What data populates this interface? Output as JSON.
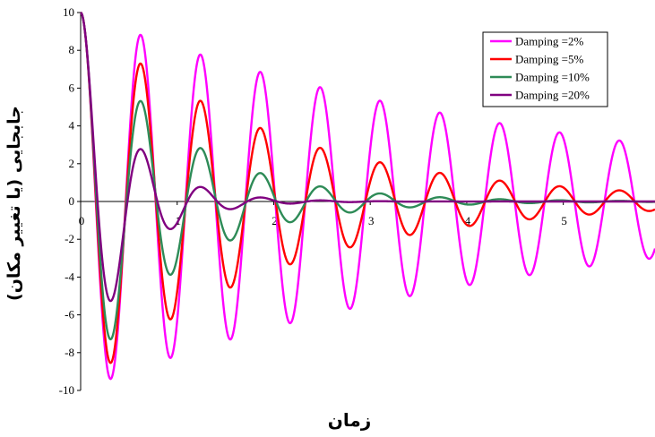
{
  "chart_data": {
    "type": "line",
    "title": "",
    "xlabel": "زمان",
    "ylabel": "جابجایی (یا تغییر مکان)",
    "xlim": [
      0,
      5.95
    ],
    "ylim": [
      -10,
      10
    ],
    "x_ticks": [
      {
        "value": 0,
        "label": "0"
      },
      {
        "value": 1,
        "label": "1"
      },
      {
        "value": 2,
        "label": "2"
      },
      {
        "value": 3,
        "label": "3"
      },
      {
        "value": 4,
        "label": "4"
      },
      {
        "value": 5,
        "label": "5"
      }
    ],
    "y_ticks": [
      {
        "value": 10,
        "label": "10"
      },
      {
        "value": 8,
        "label": "8"
      },
      {
        "value": 6,
        "label": "6"
      },
      {
        "value": 4,
        "label": "4"
      },
      {
        "value": 2,
        "label": "2"
      },
      {
        "value": 0,
        "label": "0"
      },
      {
        "value": -2,
        "label": "-2"
      },
      {
        "value": -4,
        "label": "-4"
      },
      {
        "value": -6,
        "label": "-6"
      },
      {
        "value": -8,
        "label": "-8"
      },
      {
        "value": -10,
        "label": "-10"
      }
    ],
    "grid": false,
    "legend_position": "top-right",
    "series": [
      {
        "name": "Damping =2%",
        "color": "#ff00ff",
        "initial_displacement": 10,
        "damping_ratio": 0.02,
        "period": 0.62,
        "peaks": [
          [
            0,
            10
          ],
          [
            0.31,
            -9.4
          ],
          [
            0.62,
            8.8
          ],
          [
            0.93,
            -8.3
          ],
          [
            1.24,
            7.8
          ],
          [
            1.55,
            -7.3
          ],
          [
            1.86,
            6.8
          ],
          [
            2.17,
            -6.4
          ],
          [
            2.48,
            6.0
          ],
          [
            3.1,
            5.3
          ],
          [
            3.72,
            4.7
          ],
          [
            4.34,
            4.1
          ],
          [
            4.96,
            3.7
          ],
          [
            5.58,
            3.2
          ]
        ]
      },
      {
        "name": "Damping =5%",
        "color": "#ff0000",
        "initial_displacement": 10,
        "damping_ratio": 0.05,
        "period": 0.62,
        "peaks": [
          [
            0,
            10
          ],
          [
            0.31,
            -8.6
          ],
          [
            0.62,
            7.3
          ],
          [
            0.93,
            -6.3
          ],
          [
            1.24,
            5.4
          ],
          [
            1.55,
            -4.6
          ],
          [
            1.86,
            3.9
          ],
          [
            2.17,
            -3.4
          ],
          [
            2.48,
            2.9
          ],
          [
            3.1,
            2.1
          ],
          [
            3.72,
            1.5
          ],
          [
            4.34,
            1.1
          ],
          [
            4.96,
            0.8
          ],
          [
            5.58,
            0.6
          ]
        ]
      },
      {
        "name": "Damping =10%",
        "color": "#2e8b57",
        "initial_displacement": 10,
        "damping_ratio": 0.1,
        "period": 0.62,
        "peaks": [
          [
            0,
            10
          ],
          [
            0.31,
            -7.3
          ],
          [
            0.62,
            5.4
          ],
          [
            0.93,
            -3.9
          ],
          [
            1.24,
            2.9
          ],
          [
            1.55,
            -2.1
          ],
          [
            1.86,
            1.5
          ],
          [
            2.17,
            -1.1
          ],
          [
            2.48,
            0.8
          ],
          [
            3.1,
            0.4
          ]
        ]
      },
      {
        "name": "Damping =20%",
        "color": "#800080",
        "initial_displacement": 10,
        "damping_ratio": 0.2,
        "period": 0.62,
        "peaks": [
          [
            0,
            10
          ],
          [
            0.31,
            -5.5
          ],
          [
            0.62,
            2.9
          ],
          [
            0.93,
            -1.6
          ],
          [
            1.24,
            0.8
          ],
          [
            1.55,
            -0.4
          ],
          [
            1.86,
            0.2
          ]
        ]
      }
    ]
  }
}
